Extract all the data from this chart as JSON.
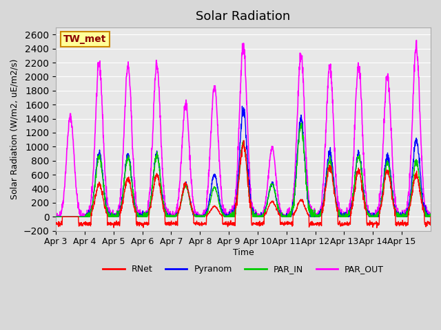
{
  "title": "Solar Radiation",
  "ylabel": "Solar Radiation (W/m2, uE/m2/s)",
  "xlabel": "Time",
  "annotation": "TW_met",
  "ylim": [
    -200,
    2700
  ],
  "yticks": [
    -200,
    0,
    200,
    400,
    600,
    800,
    1000,
    1200,
    1400,
    1600,
    1800,
    2000,
    2200,
    2400,
    2600
  ],
  "xtick_labels": [
    "Apr 3",
    "Apr 4",
    "Apr 5",
    "Apr 6",
    "Apr 7",
    "Apr 8",
    "Apr 9",
    "Apr 10",
    "Apr 11",
    "Apr 12",
    "Apr 13",
    "Apr 14",
    "Apr 15"
  ],
  "series": {
    "RNet": {
      "color": "#ff0000",
      "lw": 1.0
    },
    "Pyranom": {
      "color": "#0000ff",
      "lw": 1.0
    },
    "PAR_IN": {
      "color": "#00cc00",
      "lw": 1.0
    },
    "PAR_OUT": {
      "color": "#ff00ff",
      "lw": 1.2
    }
  },
  "bg_color": "#e8e8e8",
  "grid_color": "#ffffff",
  "days": 13,
  "points_per_day": 144,
  "day_peaks": {
    "PAR_OUT": [
      1430,
      2175,
      2150,
      2175,
      1620,
      1860,
      2450,
      980,
      2300,
      2150,
      2150,
      2000,
      2430
    ],
    "Pyranom": [
      0,
      920,
      880,
      900,
      460,
      600,
      1520,
      480,
      1400,
      920,
      900,
      860,
      1090
    ],
    "PAR_IN": [
      0,
      850,
      840,
      870,
      440,
      420,
      1050,
      470,
      1300,
      800,
      870,
      780,
      780
    ],
    "RNet": [
      0,
      470,
      540,
      600,
      470,
      150,
      1050,
      220,
      240,
      700,
      660,
      650,
      600
    ]
  },
  "night_RNet": -100
}
